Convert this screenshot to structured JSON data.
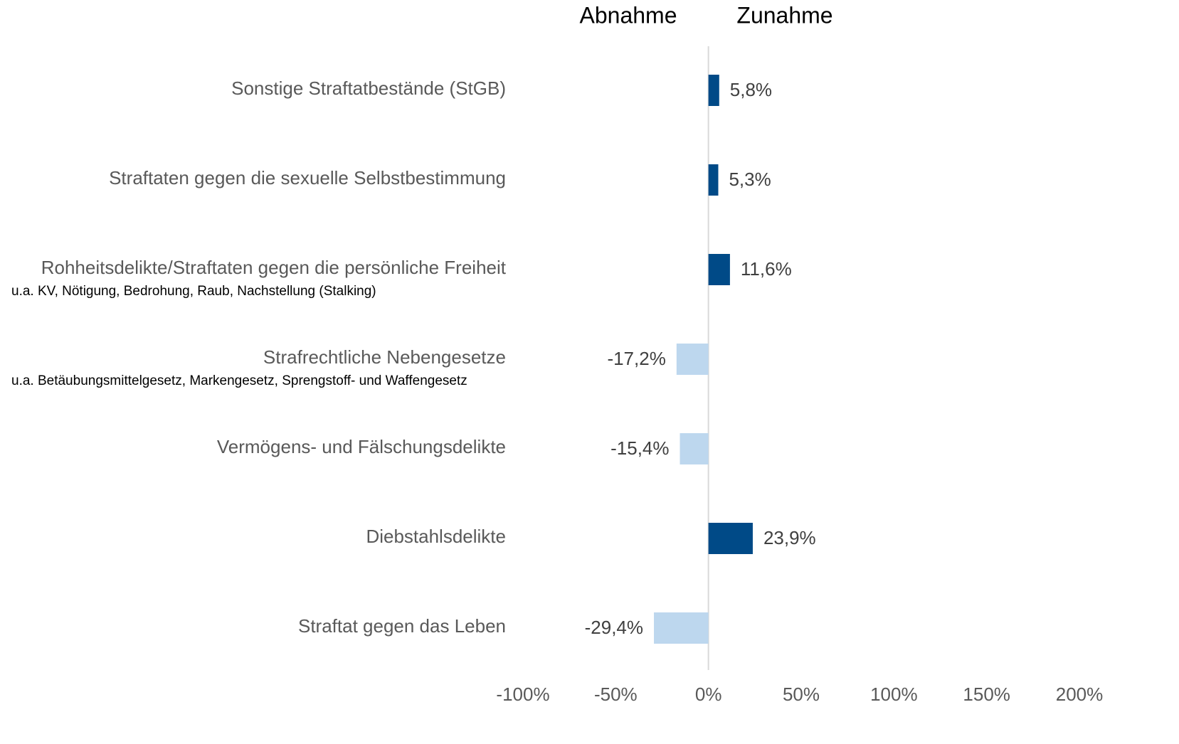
{
  "chart_data": {
    "type": "hbar",
    "annotations": [
      "Abnahme",
      "Zunahme"
    ],
    "categories": [
      "Sonstige Straftatbestände (StGB)",
      "Straftaten gegen die sexuelle Selbstbestimmung",
      "Rohheitsdelikte/Straftaten gegen die persönliche Freiheit",
      "Strafrechtliche Nebengesetze",
      "Vermögens- und Fälschungsdelikte",
      "Diebstahlsdelikte",
      "Straftat gegen das Leben"
    ],
    "sublabels": [
      null,
      null,
      "u.a. KV, Nötigung, Bedrohung, Raub, Nachstellung (Stalking)",
      "u.a. Betäubungsmittelgesetz, Markengesetz, Sprengstoff- und Waffengesetz",
      null,
      null,
      null
    ],
    "values": [
      5.8,
      5.3,
      11.6,
      -17.2,
      -15.4,
      23.9,
      -29.4
    ],
    "value_labels": [
      "5,8%",
      "5,3%",
      "11,6%",
      "-17,2%",
      "-15,4%",
      "23,9%",
      "-29,4%"
    ],
    "colors": [
      "#004a87",
      "#004a87",
      "#004a87",
      "#bdd7ee",
      "#bdd7ee",
      "#004a87",
      "#bdd7ee"
    ],
    "xlim": [
      -100,
      200
    ],
    "xticks": [
      {
        "value": -100,
        "label": "-100%"
      },
      {
        "value": -50,
        "label": "-50%"
      },
      {
        "value": 0,
        "label": "0%"
      },
      {
        "value": 50,
        "label": "50%"
      },
      {
        "value": 100,
        "label": "100%"
      },
      {
        "value": 150,
        "label": "150%"
      },
      {
        "value": 200,
        "label": "200%"
      }
    ]
  }
}
